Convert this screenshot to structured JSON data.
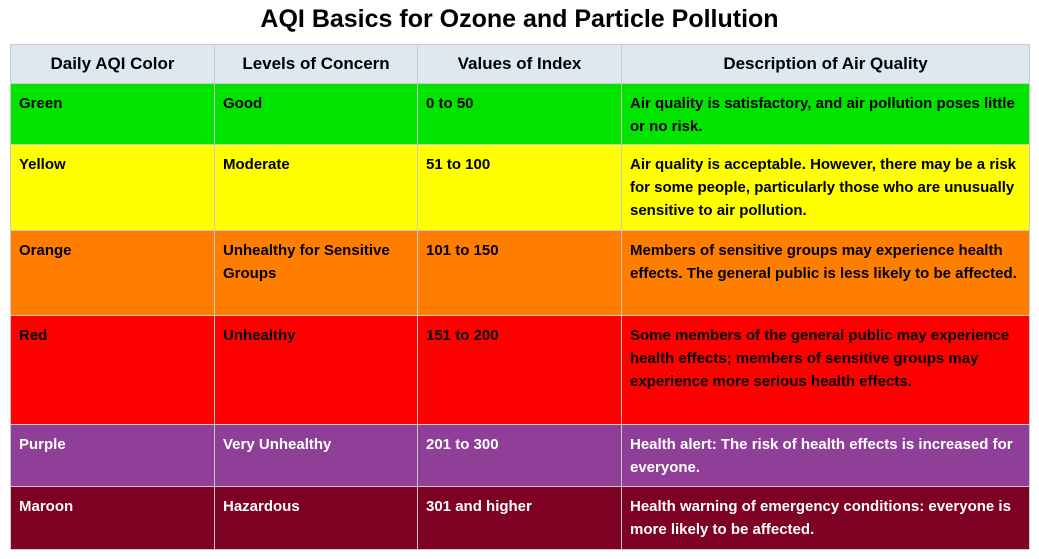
{
  "title": "AQI Basics for Ozone and Particle Pollution",
  "headers": [
    "Daily AQI Color",
    "Levels of Concern",
    "Values of Index",
    "Description of Air Quality"
  ],
  "rows": [
    {
      "color": "Green",
      "level": "Good",
      "values": "0 to 50",
      "description": "Air quality is satisfactory, and air pollution poses little or no risk.",
      "bg": "#00e400",
      "fg": "#000000"
    },
    {
      "color": "Yellow",
      "level": "Moderate",
      "values": "51 to 100",
      "description": "Air quality is acceptable. However, there may be a risk for some people, particularly those who are unusually sensitive to air pollution.",
      "bg": "#ffff00",
      "fg": "#000000"
    },
    {
      "color": "Orange",
      "level": "Unhealthy for Sensitive Groups",
      "values": "101 to 150",
      "description": "Members of sensitive groups may experience health effects. The general public is less likely to be affected.",
      "bg": "#ff7e00",
      "fg": "#000000"
    },
    {
      "color": "Red",
      "level": "Unhealthy",
      "values": "151 to 200",
      "description": "Some members of the general public may experience health effects; members of sensitive groups may experience more serious health effects.",
      "bg": "#ff0000",
      "fg": "#000000"
    },
    {
      "color": "Purple",
      "level": "Very Unhealthy",
      "values": "201 to 300",
      "description": "Health alert: The risk of health effects is increased for everyone.",
      "bg": "#8f3f97",
      "fg": "#ffffff"
    },
    {
      "color": "Maroon",
      "level": "Hazardous",
      "values": "301 and higher",
      "description": "Health warning of emergency conditions: everyone is more likely to be affected.",
      "bg": "#7e0023",
      "fg": "#ffffff"
    }
  ]
}
